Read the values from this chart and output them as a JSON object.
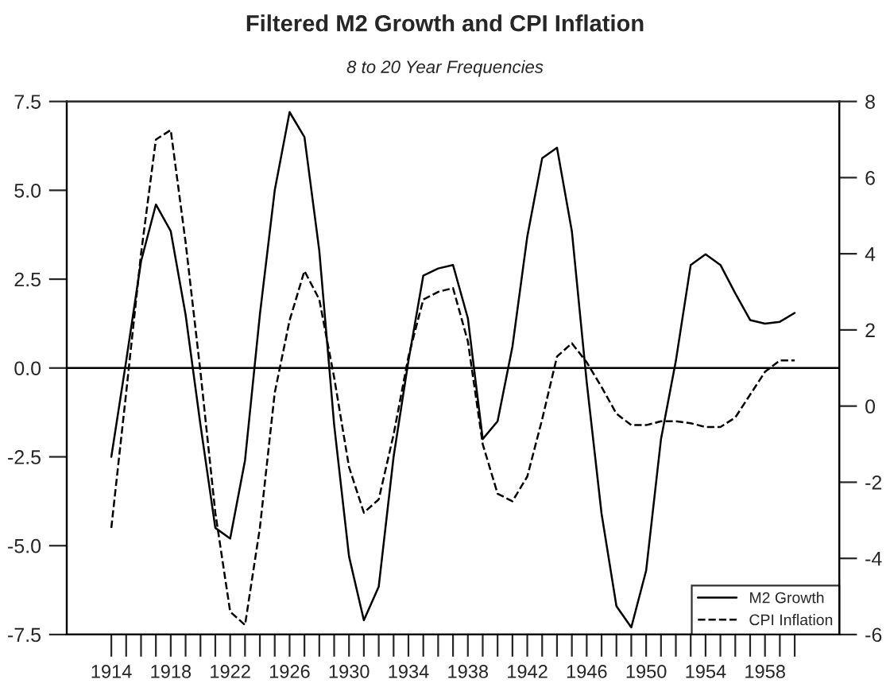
{
  "chart_data": {
    "type": "line",
    "title": "Filtered M2 Growth and CPI Inflation",
    "subtitle": "8 to 20 Year Frequencies",
    "x": [
      1914,
      1915,
      1916,
      1917,
      1918,
      1919,
      1920,
      1921,
      1922,
      1923,
      1924,
      1925,
      1926,
      1927,
      1928,
      1929,
      1930,
      1931,
      1932,
      1933,
      1934,
      1935,
      1936,
      1937,
      1938,
      1939,
      1940,
      1941,
      1942,
      1943,
      1944,
      1945,
      1946,
      1947,
      1948,
      1949,
      1950,
      1951,
      1952,
      1953,
      1954,
      1955,
      1956,
      1957,
      1958,
      1959,
      1960
    ],
    "series": [
      {
        "name": "M2 Growth",
        "color": "#000000",
        "line_style": "solid",
        "values": [
          -2.5,
          0.2,
          3.0,
          4.6,
          3.85,
          1.5,
          -1.6,
          -4.5,
          -4.8,
          -2.6,
          1.5,
          5.0,
          7.2,
          6.5,
          3.3,
          -1.6,
          -5.3,
          -7.1,
          -6.15,
          -2.5,
          0.2,
          2.6,
          2.8,
          2.9,
          1.4,
          -2.0,
          -1.5,
          0.6,
          3.7,
          5.9,
          6.2,
          3.85,
          -0.4,
          -4.1,
          -6.7,
          -7.3,
          -5.7,
          -2.0,
          0.2,
          2.9,
          3.2,
          2.9,
          2.1,
          1.35,
          1.25,
          1.3,
          1.55
        ]
      },
      {
        "name": "CPI Inflation",
        "color": "#000000",
        "line_style": "dashed",
        "axis": "y2",
        "values": [
          -3.2,
          0.35,
          4.0,
          7.0,
          7.25,
          4.3,
          0.9,
          -2.8,
          -5.4,
          -5.75,
          -3.2,
          0.35,
          2.25,
          3.55,
          2.8,
          0.75,
          -1.6,
          -2.8,
          -2.45,
          -0.75,
          1.3,
          2.8,
          3.0,
          3.1,
          1.7,
          -1.0,
          -2.3,
          -2.5,
          -1.85,
          -0.35,
          1.3,
          1.65,
          1.15,
          0.5,
          -0.2,
          -0.5,
          -0.5,
          -0.4,
          -0.4,
          -0.45,
          -0.55,
          -0.55,
          -0.3,
          0.3,
          0.9,
          1.2,
          1.2
        ]
      }
    ],
    "xlim": [
      1911,
      1963
    ],
    "xticks": [
      1914,
      {
        "value": 1915,
        "label": null
      },
      {
        "value": 1916,
        "label": null
      },
      {
        "value": 1917,
        "label": null
      },
      1918,
      {
        "value": 1919,
        "label": null
      },
      {
        "value": 1920,
        "label": null
      },
      {
        "value": 1921,
        "label": null
      },
      1922,
      {
        "value": 1923,
        "label": null
      },
      {
        "value": 1924,
        "label": null
      },
      {
        "value": 1925,
        "label": null
      },
      1926,
      {
        "value": 1927,
        "label": null
      },
      {
        "value": 1928,
        "label": null
      },
      {
        "value": 1929,
        "label": null
      },
      1930,
      {
        "value": 1931,
        "label": null
      },
      {
        "value": 1932,
        "label": null
      },
      {
        "value": 1933,
        "label": null
      },
      1934,
      {
        "value": 1935,
        "label": null
      },
      {
        "value": 1936,
        "label": null
      },
      {
        "value": 1937,
        "label": null
      },
      1938,
      {
        "value": 1939,
        "label": null
      },
      {
        "value": 1940,
        "label": null
      },
      {
        "value": 1941,
        "label": null
      },
      1942,
      {
        "value": 1943,
        "label": null
      },
      {
        "value": 1944,
        "label": null
      },
      {
        "value": 1945,
        "label": null
      },
      1946,
      {
        "value": 1947,
        "label": null
      },
      {
        "value": 1948,
        "label": null
      },
      {
        "value": 1949,
        "label": null
      },
      1950,
      {
        "value": 1951,
        "label": null
      },
      {
        "value": 1952,
        "label": null
      },
      {
        "value": 1953,
        "label": null
      },
      1954,
      {
        "value": 1955,
        "label": null
      },
      {
        "value": 1956,
        "label": null
      },
      {
        "value": 1957,
        "label": null
      },
      1958,
      {
        "value": 1959,
        "label": null
      },
      {
        "value": 1960,
        "label": null
      }
    ],
    "ylim": [
      -7.5,
      7.5
    ],
    "yticks": [
      {
        "value": -7.5,
        "label": "-7.5"
      },
      {
        "value": -5.0,
        "label": "-5.0"
      },
      {
        "value": -2.5,
        "label": "-2.5"
      },
      {
        "value": 0,
        "label": "0.0"
      },
      {
        "value": 2.5,
        "label": "2.5"
      },
      {
        "value": 5.0,
        "label": "5.0"
      },
      {
        "value": 7.5,
        "label": "7.5"
      }
    ],
    "y2lim": [
      -6,
      8
    ],
    "y2ticks": [
      -6,
      -4,
      -2,
      0,
      2,
      4,
      6,
      8
    ],
    "ref_lines": [
      {
        "axis": "y",
        "value": 0,
        "color": "#000000"
      }
    ],
    "grid": false,
    "legend": "bottom right"
  }
}
